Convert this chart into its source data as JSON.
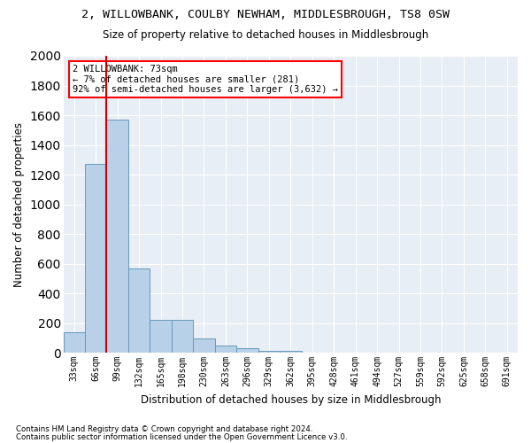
{
  "title1": "2, WILLOWBANK, COULBY NEWHAM, MIDDLESBROUGH, TS8 0SW",
  "title2": "Size of property relative to detached houses in Middlesbrough",
  "xlabel": "Distribution of detached houses by size in Middlesbrough",
  "ylabel": "Number of detached properties",
  "footnote1": "Contains HM Land Registry data © Crown copyright and database right 2024.",
  "footnote2": "Contains public sector information licensed under the Open Government Licence v3.0.",
  "annotation_line1": "2 WILLOWBANK: 73sqm",
  "annotation_line2": "← 7% of detached houses are smaller (281)",
  "annotation_line3": "92% of semi-detached houses are larger (3,632) →",
  "bar_color": "#b8d0e8",
  "bar_edge_color": "#6699bb",
  "highlight_color": "#cc0000",
  "bin_labels": [
    "33sqm",
    "66sqm",
    "99sqm",
    "132sqm",
    "165sqm",
    "198sqm",
    "230sqm",
    "263sqm",
    "296sqm",
    "329sqm",
    "362sqm",
    "395sqm",
    "428sqm",
    "461sqm",
    "494sqm",
    "527sqm",
    "559sqm",
    "592sqm",
    "625sqm",
    "658sqm",
    "691sqm"
  ],
  "bar_heights": [
    140,
    1270,
    1570,
    570,
    220,
    220,
    95,
    50,
    28,
    15,
    15,
    0,
    0,
    0,
    0,
    0,
    0,
    0,
    0,
    0,
    0
  ],
  "ylim": [
    0,
    2000
  ],
  "yticks": [
    0,
    200,
    400,
    600,
    800,
    1000,
    1200,
    1400,
    1600,
    1800,
    2000
  ],
  "red_line_x": 1.5,
  "figsize": [
    6.0,
    5.0
  ],
  "dpi": 100
}
